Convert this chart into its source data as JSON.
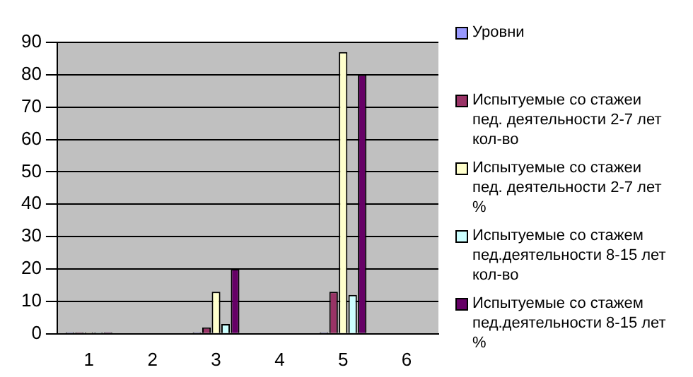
{
  "chart_data": {
    "type": "bar",
    "categories": [
      "1",
      "2",
      "3",
      "4",
      "5",
      "6"
    ],
    "series": [
      {
        "name": "Уровни",
        "color": "#9999ff",
        "values": [
          0,
          null,
          0,
          null,
          0,
          null
        ]
      },
      {
        "name": "Испытуемые со стажеи пед. деятельности 2-7 лет кол-во",
        "color": "#993366",
        "values": [
          0,
          null,
          2,
          null,
          13,
          null
        ]
      },
      {
        "name": "Испытуемые со стажеи пед. деятельности 2-7 лет %",
        "color": "#ffffcc",
        "values": [
          0,
          null,
          13,
          null,
          87,
          null
        ]
      },
      {
        "name": "Испытуемые со стажем пед.деятельности 8-15 лет кол-во",
        "color": "#ccffff",
        "values": [
          0,
          null,
          3,
          null,
          12,
          null
        ]
      },
      {
        "name": "Испытуемые со стажем пед.деятельности 8-15 лет %",
        "color": "#660066",
        "values": [
          0,
          null,
          20,
          null,
          80,
          null
        ]
      }
    ],
    "ylim": [
      0,
      90
    ],
    "yticks": [
      0,
      10,
      20,
      30,
      40,
      50,
      60,
      70,
      80,
      90
    ],
    "grid": "y",
    "legend": "right"
  }
}
